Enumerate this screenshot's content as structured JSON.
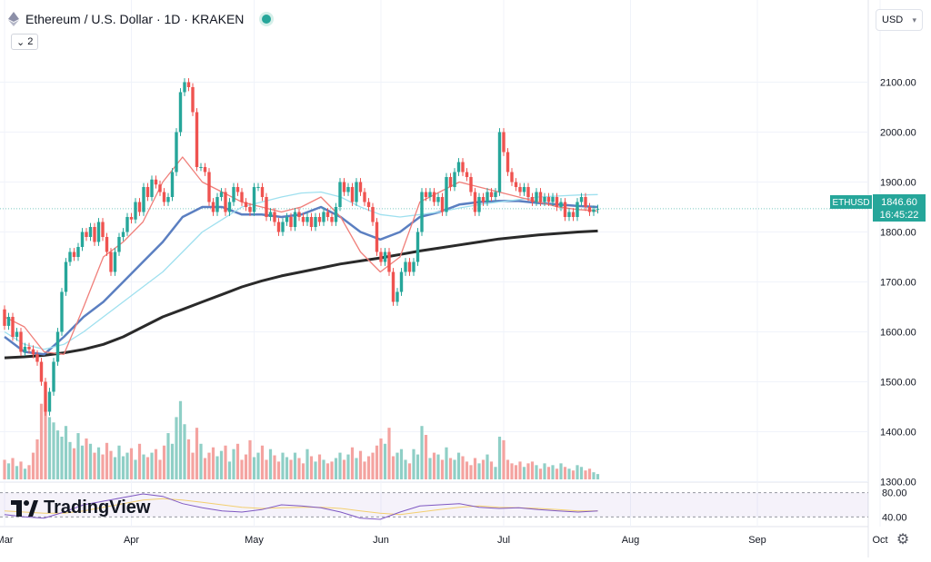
{
  "header": {
    "symbol_title": "Ethereum / U.S. Dollar · 1D · KRAKEN",
    "indicator_count": "2",
    "currency": "USD"
  },
  "brand": {
    "logo_text": "TradingView"
  },
  "price_label": {
    "ticker": "ETHUSD",
    "price": "1846.60",
    "countdown": "16:45:22"
  },
  "colors": {
    "up": "#26a69a",
    "down": "#ef5350",
    "vol_up": "#8fcfc6",
    "vol_down": "#f4a3a0",
    "ma_fast": "#f07f7a",
    "ma_mid": "#5b7fc1",
    "ma_light": "#9fe0ef",
    "ma_slow": "#2a2a2a",
    "rsi": "#7e57c2",
    "rsi_ma": "#f3cf6f"
  },
  "chart_data": {
    "type": "candlestick",
    "y_ticks": [
      "2100.00",
      "2000.00",
      "1900.00",
      "1800.00",
      "1700.00",
      "1600.00",
      "1500.00",
      "1400.00",
      "1300.00"
    ],
    "y_tick_values": [
      2100,
      2000,
      1900,
      1800,
      1700,
      1600,
      1500,
      1400,
      1300
    ],
    "ylim": [
      1290,
      2170
    ],
    "x_ticks": [
      "Mar",
      "Apr",
      "May",
      "Jun",
      "Jul",
      "Aug",
      "Sep",
      "Oct"
    ],
    "x_tick_days": [
      0,
      31,
      61,
      92,
      122,
      153,
      184,
      214
    ],
    "candles_start": "Mar",
    "candles": [
      [
        1645,
        1612
      ],
      [
        1612,
        1630
      ],
      [
        1630,
        1590
      ],
      [
        1590,
        1600
      ],
      [
        1600,
        1560
      ],
      [
        1560,
        1570
      ],
      [
        1570,
        1565
      ],
      [
        1565,
        1555
      ],
      [
        1555,
        1540
      ],
      [
        1540,
        1500
      ],
      [
        1500,
        1440
      ],
      [
        1440,
        1480
      ],
      [
        1480,
        1540
      ],
      [
        1540,
        1600
      ],
      [
        1600,
        1680
      ],
      [
        1680,
        1740
      ],
      [
        1740,
        1760
      ],
      [
        1760,
        1750
      ],
      [
        1750,
        1770
      ],
      [
        1770,
        1800
      ],
      [
        1800,
        1790
      ],
      [
        1790,
        1810
      ],
      [
        1810,
        1780
      ],
      [
        1780,
        1820
      ],
      [
        1820,
        1790
      ],
      [
        1790,
        1760
      ],
      [
        1760,
        1720
      ],
      [
        1720,
        1760
      ],
      [
        1760,
        1790
      ],
      [
        1790,
        1800
      ],
      [
        1800,
        1830
      ],
      [
        1830,
        1825
      ],
      [
        1825,
        1860
      ],
      [
        1860,
        1840
      ],
      [
        1840,
        1890
      ],
      [
        1890,
        1870
      ],
      [
        1870,
        1905
      ],
      [
        1905,
        1895
      ],
      [
        1895,
        1880
      ],
      [
        1880,
        1860
      ],
      [
        1860,
        1870
      ],
      [
        1870,
        1920
      ],
      [
        1920,
        2000
      ],
      [
        2000,
        2080
      ],
      [
        2080,
        2100
      ],
      [
        2100,
        2090
      ],
      [
        2090,
        2040
      ],
      [
        2040,
        1930
      ],
      [
        1930,
        1930
      ],
      [
        1930,
        1920
      ],
      [
        1920,
        1860
      ],
      [
        1860,
        1840
      ],
      [
        1840,
        1870
      ],
      [
        1870,
        1880
      ],
      [
        1880,
        1840
      ],
      [
        1840,
        1860
      ],
      [
        1860,
        1890
      ],
      [
        1890,
        1880
      ],
      [
        1880,
        1860
      ],
      [
        1860,
        1850
      ],
      [
        1850,
        1840
      ],
      [
        1840,
        1890
      ],
      [
        1890,
        1890
      ],
      [
        1890,
        1870
      ],
      [
        1870,
        1830
      ],
      [
        1830,
        1840
      ],
      [
        1840,
        1820
      ],
      [
        1820,
        1800
      ],
      [
        1800,
        1820
      ],
      [
        1820,
        1830
      ],
      [
        1830,
        1810
      ],
      [
        1810,
        1840
      ],
      [
        1840,
        1830
      ],
      [
        1830,
        1820
      ],
      [
        1820,
        1830
      ],
      [
        1830,
        1810
      ],
      [
        1810,
        1830
      ],
      [
        1830,
        1820
      ],
      [
        1820,
        1840
      ],
      [
        1840,
        1830
      ],
      [
        1830,
        1820
      ],
      [
        1820,
        1850
      ],
      [
        1850,
        1900
      ],
      [
        1900,
        1880
      ],
      [
        1880,
        1890
      ],
      [
        1890,
        1860
      ],
      [
        1860,
        1900
      ],
      [
        1900,
        1880
      ],
      [
        1880,
        1860
      ],
      [
        1860,
        1850
      ],
      [
        1850,
        1820
      ],
      [
        1820,
        1760
      ],
      [
        1760,
        1740
      ],
      [
        1740,
        1760
      ],
      [
        1760,
        1720
      ],
      [
        1720,
        1660
      ],
      [
        1660,
        1680
      ],
      [
        1680,
        1720
      ],
      [
        1720,
        1740
      ],
      [
        1740,
        1720
      ],
      [
        1720,
        1740
      ],
      [
        1740,
        1800
      ],
      [
        1800,
        1880
      ],
      [
        1880,
        1870
      ],
      [
        1870,
        1880
      ],
      [
        1880,
        1860
      ],
      [
        1860,
        1870
      ],
      [
        1870,
        1840
      ],
      [
        1840,
        1910
      ],
      [
        1910,
        1890
      ],
      [
        1890,
        1920
      ],
      [
        1920,
        1940
      ],
      [
        1940,
        1920
      ],
      [
        1920,
        1910
      ],
      [
        1910,
        1880
      ],
      [
        1880,
        1840
      ],
      [
        1840,
        1870
      ],
      [
        1870,
        1860
      ],
      [
        1860,
        1880
      ],
      [
        1880,
        1870
      ],
      [
        1870,
        1880
      ],
      [
        1880,
        2000
      ],
      [
        2000,
        1960
      ],
      [
        1960,
        1920
      ],
      [
        1920,
        1900
      ],
      [
        1900,
        1890
      ],
      [
        1890,
        1880
      ],
      [
        1880,
        1890
      ],
      [
        1890,
        1870
      ],
      [
        1870,
        1860
      ],
      [
        1860,
        1880
      ],
      [
        1880,
        1860
      ],
      [
        1860,
        1870
      ],
      [
        1870,
        1860
      ],
      [
        1860,
        1870
      ],
      [
        1870,
        1850
      ],
      [
        1850,
        1860
      ],
      [
        1860,
        1830
      ],
      [
        1830,
        1840
      ],
      [
        1840,
        1830
      ],
      [
        1830,
        1860
      ],
      [
        1860,
        1870
      ],
      [
        1870,
        1850
      ],
      [
        1850,
        1840
      ],
      [
        1840,
        1845
      ],
      [
        1845,
        1846.6
      ]
    ],
    "volume_ylim": [
      0,
      100
    ],
    "volume": [
      22,
      18,
      24,
      15,
      20,
      12,
      16,
      30,
      45,
      85,
      78,
      70,
      64,
      55,
      48,
      60,
      42,
      35,
      52,
      38,
      46,
      40,
      30,
      36,
      28,
      41,
      32,
      25,
      38,
      26,
      30,
      35,
      22,
      40,
      28,
      25,
      30,
      34,
      22,
      38,
      52,
      40,
      70,
      88,
      62,
      45,
      30,
      58,
      40,
      24,
      30,
      36,
      26,
      32,
      38,
      20,
      34,
      40,
      22,
      28,
      44,
      25,
      30,
      38,
      22,
      34,
      27,
      20,
      30,
      25,
      22,
      30,
      24,
      18,
      34,
      26,
      20,
      28,
      22,
      18,
      20,
      24,
      30,
      22,
      28,
      36,
      24,
      32,
      20,
      26,
      30,
      38,
      46,
      40,
      58,
      26,
      30,
      34,
      22,
      18,
      34,
      28,
      60,
      50,
      24,
      30,
      28,
      22,
      36,
      24,
      22,
      30,
      26,
      20,
      16,
      24,
      18,
      22,
      28,
      20,
      14,
      48,
      44,
      22,
      18,
      16,
      20,
      14,
      18,
      20,
      16,
      12,
      18,
      14,
      16,
      12,
      18,
      14,
      12,
      10,
      16,
      14,
      10,
      12,
      8,
      6
    ],
    "moving_averages": [
      {
        "color_key": "ma_slow",
        "values": [
          1548,
          1550,
          1553,
          1558,
          1565,
          1575,
          1590,
          1610,
          1630,
          1645,
          1660,
          1675,
          1690,
          1702,
          1712,
          1720,
          1728,
          1736,
          1742,
          1748,
          1755,
          1762,
          1768,
          1774,
          1780,
          1786,
          1790,
          1794,
          1797,
          1800,
          1802
        ]
      },
      {
        "color_key": "ma_mid",
        "values": [
          1590,
          1560,
          1555,
          1590,
          1630,
          1660,
          1700,
          1740,
          1780,
          1830,
          1850,
          1850,
          1835,
          1835,
          1830,
          1835,
          1850,
          1830,
          1800,
          1785,
          1800,
          1830,
          1840,
          1855,
          1860,
          1862,
          1862,
          1858,
          1855,
          1852,
          1850
        ]
      },
      {
        "color_key": "ma_light",
        "values": [
          1600,
          1575,
          1565,
          1575,
          1600,
          1630,
          1660,
          1690,
          1720,
          1760,
          1800,
          1825,
          1850,
          1860,
          1870,
          1878,
          1880,
          1870,
          1850,
          1835,
          1830,
          1835,
          1840,
          1848,
          1855,
          1860,
          1865,
          1870,
          1872,
          1874,
          1875
        ]
      },
      {
        "color_key": "ma_fast",
        "values": [
          1630,
          1610,
          1560,
          1555,
          1650,
          1750,
          1780,
          1820,
          1900,
          1950,
          1900,
          1880,
          1860,
          1850,
          1840,
          1850,
          1870,
          1830,
          1760,
          1720,
          1750,
          1860,
          1880,
          1900,
          1890,
          1880,
          1870,
          1860,
          1850,
          1845,
          1842
        ]
      }
    ],
    "rsi_ticks": [
      "80.00",
      "40.00"
    ],
    "rsi_tick_values": [
      80,
      40
    ],
    "rsi_ylim": [
      30,
      90
    ],
    "rsi": [
      44,
      40,
      38,
      48,
      60,
      66,
      72,
      78,
      74,
      62,
      55,
      50,
      48,
      52,
      60,
      58,
      55,
      48,
      38,
      36,
      48,
      58,
      60,
      62,
      56,
      54,
      55,
      52,
      50,
      48,
      50
    ],
    "rsi_ma": [
      50,
      48,
      46,
      46,
      50,
      56,
      62,
      68,
      70,
      68,
      64,
      60,
      56,
      54,
      55,
      56,
      56,
      54,
      50,
      46,
      44,
      48,
      52,
      56,
      58,
      56,
      55,
      54,
      52,
      50,
      50
    ]
  }
}
